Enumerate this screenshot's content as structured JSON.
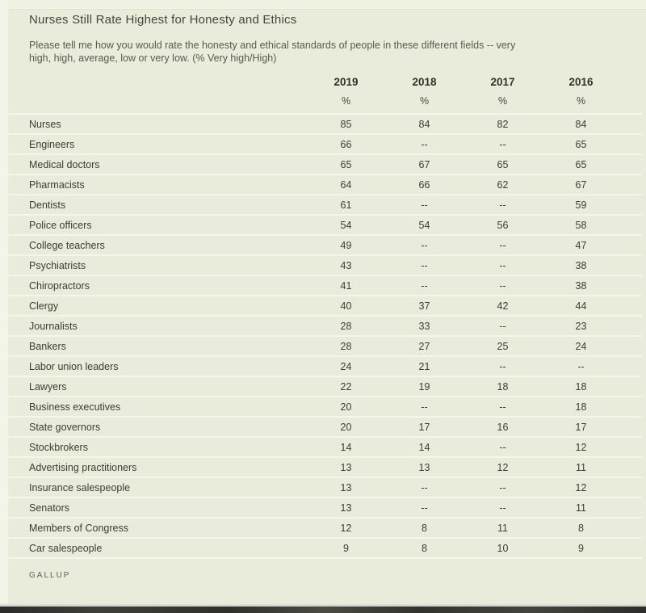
{
  "page": {
    "title": "Nurses Still Rate Highest for Honesty and Ethics",
    "subtitle_line1": "Please tell me how you would rate the honesty and ethical standards of people in these different fields -- very",
    "subtitle_line2": "high, high, average, low or very low. (% Very high/High)",
    "source": "GALLUP"
  },
  "colors": {
    "background": "#e9ecda",
    "edge_strip": "#f3f5e9",
    "row_separator": "#f4f6ea",
    "text_dark": "#3c3d33",
    "bottom_bar": "#33332e"
  },
  "chart_data": {
    "type": "table",
    "title": "Nurses Still Rate Highest for Honesty and Ethics",
    "subtitle": "Please tell me how you would rate the honesty and ethical standards of people in these different fields -- very high, high, average, low or very low. (% Very high/High)",
    "unit": "% Very high/High",
    "columns": [
      "2019",
      "2018",
      "2017",
      "2016"
    ],
    "unit_row": [
      "%",
      "%",
      "%",
      "%"
    ],
    "rows": [
      {
        "label": "Nurses",
        "values": [
          "85",
          "84",
          "82",
          "84"
        ]
      },
      {
        "label": "Engineers",
        "values": [
          "66",
          "--",
          "--",
          "65"
        ]
      },
      {
        "label": "Medical doctors",
        "values": [
          "65",
          "67",
          "65",
          "65"
        ]
      },
      {
        "label": "Pharmacists",
        "values": [
          "64",
          "66",
          "62",
          "67"
        ]
      },
      {
        "label": "Dentists",
        "values": [
          "61",
          "--",
          "--",
          "59"
        ]
      },
      {
        "label": "Police officers",
        "values": [
          "54",
          "54",
          "56",
          "58"
        ]
      },
      {
        "label": "College teachers",
        "values": [
          "49",
          "--",
          "--",
          "47"
        ]
      },
      {
        "label": "Psychiatrists",
        "values": [
          "43",
          "--",
          "--",
          "38"
        ]
      },
      {
        "label": "Chiropractors",
        "values": [
          "41",
          "--",
          "--",
          "38"
        ]
      },
      {
        "label": "Clergy",
        "values": [
          "40",
          "37",
          "42",
          "44"
        ]
      },
      {
        "label": "Journalists",
        "values": [
          "28",
          "33",
          "--",
          "23"
        ]
      },
      {
        "label": "Bankers",
        "values": [
          "28",
          "27",
          "25",
          "24"
        ]
      },
      {
        "label": "Labor union leaders",
        "values": [
          "24",
          "21",
          "--",
          "--"
        ]
      },
      {
        "label": "Lawyers",
        "values": [
          "22",
          "19",
          "18",
          "18"
        ]
      },
      {
        "label": "Business executives",
        "values": [
          "20",
          "--",
          "--",
          "18"
        ]
      },
      {
        "label": "State governors",
        "values": [
          "20",
          "17",
          "16",
          "17"
        ]
      },
      {
        "label": "Stockbrokers",
        "values": [
          "14",
          "14",
          "--",
          "12"
        ]
      },
      {
        "label": "Advertising practitioners",
        "values": [
          "13",
          "13",
          "12",
          "11"
        ]
      },
      {
        "label": "Insurance salespeople",
        "values": [
          "13",
          "--",
          "--",
          "12"
        ]
      },
      {
        "label": "Senators",
        "values": [
          "13",
          "--",
          "--",
          "11"
        ]
      },
      {
        "label": "Members of Congress",
        "values": [
          "12",
          "8",
          "11",
          "8"
        ]
      },
      {
        "label": "Car salespeople",
        "values": [
          "9",
          "8",
          "10",
          "9"
        ]
      }
    ],
    "legend_position": "none",
    "grid": "horizontal-separators"
  }
}
